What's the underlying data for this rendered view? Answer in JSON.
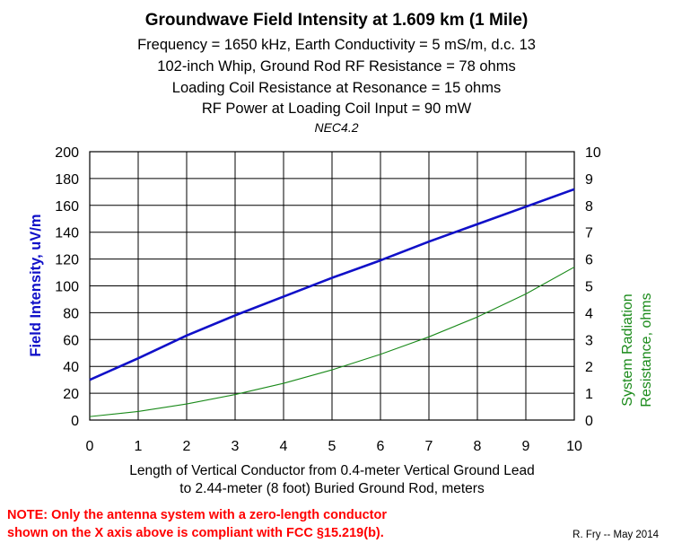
{
  "header": {
    "title": "Groundwave Field Intensity at 1.609 km (1 Mile)",
    "line1": "Frequency = 1650 kHz, Earth Conductivity = 5 mS/m, d.c. 13",
    "line2": "102-inch Whip, Ground Rod RF Resistance = 78 ohms",
    "line3": "Loading Coil Resistance at Resonance = 15 ohms",
    "line4": "RF Power at Loading Coil Input = 90 mW",
    "line5": "NEC4.2"
  },
  "colors": {
    "left_axis": "#1010c8",
    "right_axis": "#1a8a1a",
    "note": "#ff0000",
    "grid": "#000000"
  },
  "chart_data": {
    "type": "line",
    "title": "Groundwave Field Intensity at 1.609 km (1 Mile)",
    "xlabel_line1": "Length of Vertical Conductor from 0.4-meter Vertical Ground Lead",
    "xlabel_line2": "to 2.44-meter (8 foot) Buried Ground Rod, meters",
    "ylabel_left": "Field Intensity, uV/m",
    "ylabel_right_line1": "System Radiation",
    "ylabel_right_line2": "Resistance, ohms",
    "xlim": [
      0,
      10
    ],
    "ylim_left": [
      0,
      200
    ],
    "ylim_right": [
      0,
      10
    ],
    "x_ticks": [
      "0",
      "1",
      "2",
      "3",
      "4",
      "5",
      "6",
      "7",
      "8",
      "9",
      "10"
    ],
    "y_ticks_left": [
      "0",
      "20",
      "40",
      "60",
      "80",
      "100",
      "120",
      "140",
      "160",
      "180",
      "200"
    ],
    "y_ticks_right": [
      "0",
      "1",
      "2",
      "3",
      "4",
      "5",
      "6",
      "7",
      "8",
      "9",
      "10"
    ],
    "grid": true,
    "x": [
      0,
      1,
      2,
      3,
      4,
      5,
      6,
      7,
      8,
      9,
      10
    ],
    "series": [
      {
        "axis": "left",
        "values": [
          30,
          46,
          63,
          78,
          92,
          106,
          119,
          133,
          146,
          159,
          172
        ]
      },
      {
        "axis": "right",
        "values": [
          0.13,
          0.32,
          0.6,
          0.95,
          1.37,
          1.87,
          2.45,
          3.1,
          3.84,
          4.7,
          5.7
        ]
      }
    ]
  },
  "note": {
    "line1": "NOTE:  Only the antenna system with a zero-length conductor",
    "line2": "shown on the X axis above is compliant with FCC §15.219(b)."
  },
  "credit": "R. Fry -- May 2014"
}
